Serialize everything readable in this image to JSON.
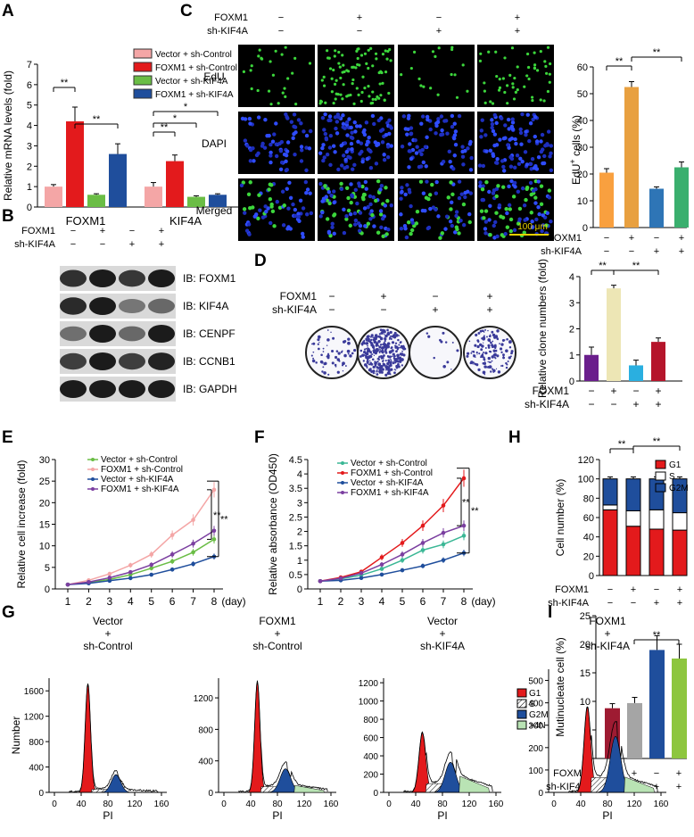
{
  "panels": {
    "A": "A",
    "B": "B",
    "C": "C",
    "D": "D",
    "E": "E",
    "F": "F",
    "G": "G",
    "H": "H",
    "I": "I"
  },
  "colors": {
    "pink": "#F4A6A6",
    "red": "#E31A1C",
    "green": "#6ABD45",
    "blue": "#1F4E9C",
    "orange": "#F5A742",
    "salmon": "#E8A040",
    "peach": "#F9A03F",
    "cyan": "#2AAFE0",
    "teal": "#3AAF6E",
    "purple": "#6A1E8C",
    "crimson": "#B5152B",
    "steel": "#2E75B6",
    "lime": "#8DC63F",
    "dark_red": "#9E1B32",
    "s_white": "#FFFFFF",
    "g2m": "#1F4E9C",
    "n4": "#B9E3B4"
  },
  "pm": {
    "plus": "+",
    "minus": "−"
  },
  "conds": {
    "foxm1": [
      "−",
      "+",
      "−",
      "+"
    ],
    "kif4a": [
      "−",
      "−",
      "+",
      "+"
    ]
  },
  "labels": {
    "foxm1": "FOXM1",
    "sh_kif4a": "sh-KIF4A",
    "day": "(day)",
    "pi": "PI",
    "number": "Number",
    "sig": "**",
    "sig1": "*"
  },
  "legend4": [
    "Vector + sh-Control",
    "FOXM1 + sh-Control",
    "Vector + sh-KIF4A",
    "FOXM1 + sh-KIF4A"
  ],
  "panelB": {
    "blots": [
      "IB: FOXM1",
      "IB: KIF4A",
      "IB: CENPF",
      "IB: CCNB1",
      "IB: GAPDH"
    ]
  },
  "panelC": {
    "rows": [
      "EdU",
      "DAPI",
      "Merged"
    ],
    "scale": "100 μm",
    "ylabel": "EdU+ cells (%)",
    "ylabel_main": "EdU",
    "ylabel_sup": "+",
    "ylabel_rest": " cells (%)"
  },
  "panelG": {
    "titles": [
      [
        "Vector",
        "+",
        "sh-Control"
      ],
      [
        "FOXM1",
        "+",
        "sh-Control"
      ],
      [
        "Vector",
        "+",
        "sh-KIF4A"
      ],
      [
        "FOXM1",
        "+",
        "sh-KIF4A"
      ]
    ],
    "legend": [
      "G1",
      "S",
      "G2M",
      ">4N"
    ]
  },
  "panelH": {
    "legend": [
      "G1",
      "S",
      "G2M"
    ]
  },
  "chart_data": [
    {
      "id": "A",
      "type": "bar",
      "ylabel": "Relative mRNA levels (fold)",
      "ylim": [
        0,
        7
      ],
      "yticks": [
        "0",
        "1",
        "2",
        "3",
        "4",
        "5",
        "6",
        "7"
      ],
      "categories": [
        "FOXM1",
        "KIF4A"
      ],
      "series": [
        {
          "name": "Vector + sh-Control",
          "values": [
            1.0,
            1.0
          ],
          "err": [
            0.1,
            0.2
          ]
        },
        {
          "name": "FOXM1 + sh-Control",
          "values": [
            4.2,
            2.25
          ],
          "err": [
            0.7,
            0.3
          ]
        },
        {
          "name": "Vector + sh-KIF4A",
          "values": [
            0.6,
            0.5
          ],
          "err": [
            0.05,
            0.05
          ]
        },
        {
          "name": "FOXM1 + sh-KIF4A",
          "values": [
            2.6,
            0.6
          ],
          "err": [
            0.5,
            0.05
          ]
        }
      ]
    },
    {
      "id": "C",
      "type": "bar",
      "ylabel": "EdU+ cells (%)",
      "ylim": [
        0,
        60
      ],
      "yticks": [
        "0",
        "10",
        "20",
        "30",
        "40",
        "50",
        "60"
      ],
      "values": [
        20.5,
        52.5,
        14.5,
        22.5
      ],
      "err": [
        1.5,
        2,
        0.7,
        2
      ]
    },
    {
      "id": "D",
      "type": "bar",
      "ylabel": "Relative clone numbers (fold)",
      "ylim": [
        0,
        4
      ],
      "yticks": [
        "0",
        "1",
        "2",
        "3",
        "4"
      ],
      "values": [
        1.0,
        3.55,
        0.6,
        1.5
      ],
      "err": [
        0.3,
        0.12,
        0.2,
        0.15
      ]
    },
    {
      "id": "E",
      "type": "line",
      "ylabel": "Relative cell increase (fold)",
      "ylim": [
        0,
        30
      ],
      "yticks": [
        "0",
        "5",
        "10",
        "15",
        "20",
        "25",
        "30"
      ],
      "x": [
        "1",
        "2",
        "3",
        "4",
        "5",
        "6",
        "7",
        "8"
      ],
      "series": [
        {
          "name": "Vector + sh-Control",
          "values": [
            1,
            1.5,
            2.2,
            3.3,
            4.8,
            6.4,
            8.5,
            11.5
          ]
        },
        {
          "name": "FOXM1 + sh-Control",
          "values": [
            1,
            2,
            3.5,
            5.5,
            8,
            12.5,
            16,
            23
          ]
        },
        {
          "name": "Vector + sh-KIF4A",
          "values": [
            1,
            1.3,
            1.9,
            2.5,
            3.3,
            4.5,
            5.8,
            7.5
          ]
        },
        {
          "name": "FOXM1 + sh-KIF4A",
          "values": [
            1,
            1.6,
            2.6,
            3.9,
            5.6,
            8,
            10.5,
            13.5
          ]
        }
      ]
    },
    {
      "id": "F",
      "type": "line",
      "ylabel": "Relative absorbance (OD450)",
      "ylim": [
        0,
        4.5
      ],
      "yticks": [
        "0",
        "0.5",
        "1",
        "1.5",
        "2",
        "2.5",
        "3",
        "3.5",
        "4",
        "4.5"
      ],
      "x": [
        "1",
        "2",
        "3",
        "4",
        "5",
        "6",
        "7",
        "8"
      ],
      "series": [
        {
          "name": "Vector + sh-Control",
          "values": [
            0.27,
            0.35,
            0.48,
            0.7,
            1.0,
            1.35,
            1.55,
            1.85
          ]
        },
        {
          "name": "FOXM1 + sh-Control",
          "values": [
            0.27,
            0.4,
            0.6,
            1.1,
            1.6,
            2.2,
            2.9,
            3.85
          ]
        },
        {
          "name": "Vector + sh-KIF4A",
          "values": [
            0.27,
            0.3,
            0.38,
            0.5,
            0.65,
            0.8,
            1.0,
            1.25
          ]
        },
        {
          "name": "FOXM1 + sh-KIF4A",
          "values": [
            0.27,
            0.37,
            0.55,
            0.85,
            1.2,
            1.6,
            1.95,
            2.2
          ]
        }
      ]
    },
    {
      "id": "H",
      "type": "bar",
      "stacked": true,
      "ylabel": "Cell number (%)",
      "ylim": [
        0,
        120
      ],
      "yticks": [
        "0",
        "20",
        "40",
        "60",
        "80",
        "100",
        "120"
      ],
      "series": [
        {
          "name": "G1",
          "values": [
            68,
            51,
            48,
            47
          ]
        },
        {
          "name": "S",
          "values": [
            5,
            16,
            20,
            18
          ]
        },
        {
          "name": "G2M",
          "values": [
            27,
            33,
            32,
            35
          ]
        }
      ]
    },
    {
      "id": "I",
      "type": "bar",
      "ylabel": "Mutinucleate cell (%)",
      "ylim": [
        0,
        25
      ],
      "yticks": [
        "0",
        "5",
        "10",
        "15",
        "20",
        "25"
      ],
      "values": [
        8.8,
        9.7,
        19,
        17.5
      ],
      "err": [
        0.8,
        1,
        2.5,
        2.5
      ]
    },
    {
      "id": "G",
      "type": "area",
      "ylabel": "Number",
      "xlabel": "PI",
      "xticks": [
        "0",
        "40",
        "80",
        "120",
        "160"
      ],
      "panels": [
        {
          "ymax": 1800,
          "yticks": [
            "0",
            "400",
            "800",
            "1200",
            "1600"
          ]
        },
        {
          "ymax": 1450,
          "yticks": [
            "0",
            "400",
            "800",
            "1200"
          ]
        },
        {
          "ymax": 1250,
          "yticks": [
            "0",
            "200",
            "400",
            "600",
            "800",
            "1000",
            "1200"
          ]
        },
        {
          "ymax": 550,
          "yticks": [
            "0",
            "100",
            "200",
            "300",
            "400",
            "500"
          ]
        }
      ]
    }
  ]
}
